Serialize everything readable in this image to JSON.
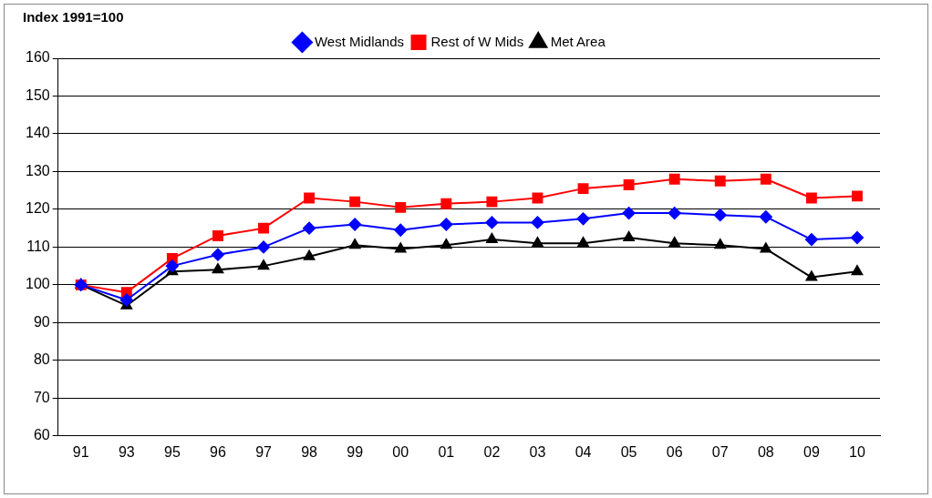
{
  "chart_data": {
    "type": "line",
    "title": "Index 1991=100",
    "categories": [
      "91",
      "93",
      "95",
      "96",
      "97",
      "98",
      "99",
      "00",
      "01",
      "02",
      "03",
      "04",
      "05",
      "06",
      "07",
      "08",
      "09",
      "10"
    ],
    "series": [
      {
        "name": "West Midlands",
        "color": "#0000ff",
        "marker": "diamond",
        "values": [
          100,
          96,
          105,
          108,
          110,
          115,
          116,
          114.5,
          116,
          116.5,
          116.5,
          117.5,
          119,
          119,
          118.5,
          118,
          112,
          112.5
        ]
      },
      {
        "name": "Rest of W Mids",
        "color": "#ff0000",
        "marker": "square",
        "values": [
          100,
          98,
          107,
          113,
          115,
          123,
          122,
          120.5,
          121.5,
          122,
          123,
          125.5,
          126.5,
          128,
          127.5,
          128,
          123,
          123.5
        ]
      },
      {
        "name": "Met Area",
        "color": "#000000",
        "marker": "triangle",
        "values": [
          100,
          94.5,
          103.5,
          104,
          105,
          107.5,
          110.5,
          109.5,
          110.5,
          112,
          111,
          111,
          112.5,
          111,
          110.5,
          109.5,
          102,
          103.5
        ]
      }
    ],
    "ylim": [
      60,
      160
    ],
    "yticks": [
      60,
      70,
      80,
      90,
      100,
      110,
      120,
      130,
      140,
      150,
      160
    ],
    "grid": "y",
    "legend": "top"
  }
}
